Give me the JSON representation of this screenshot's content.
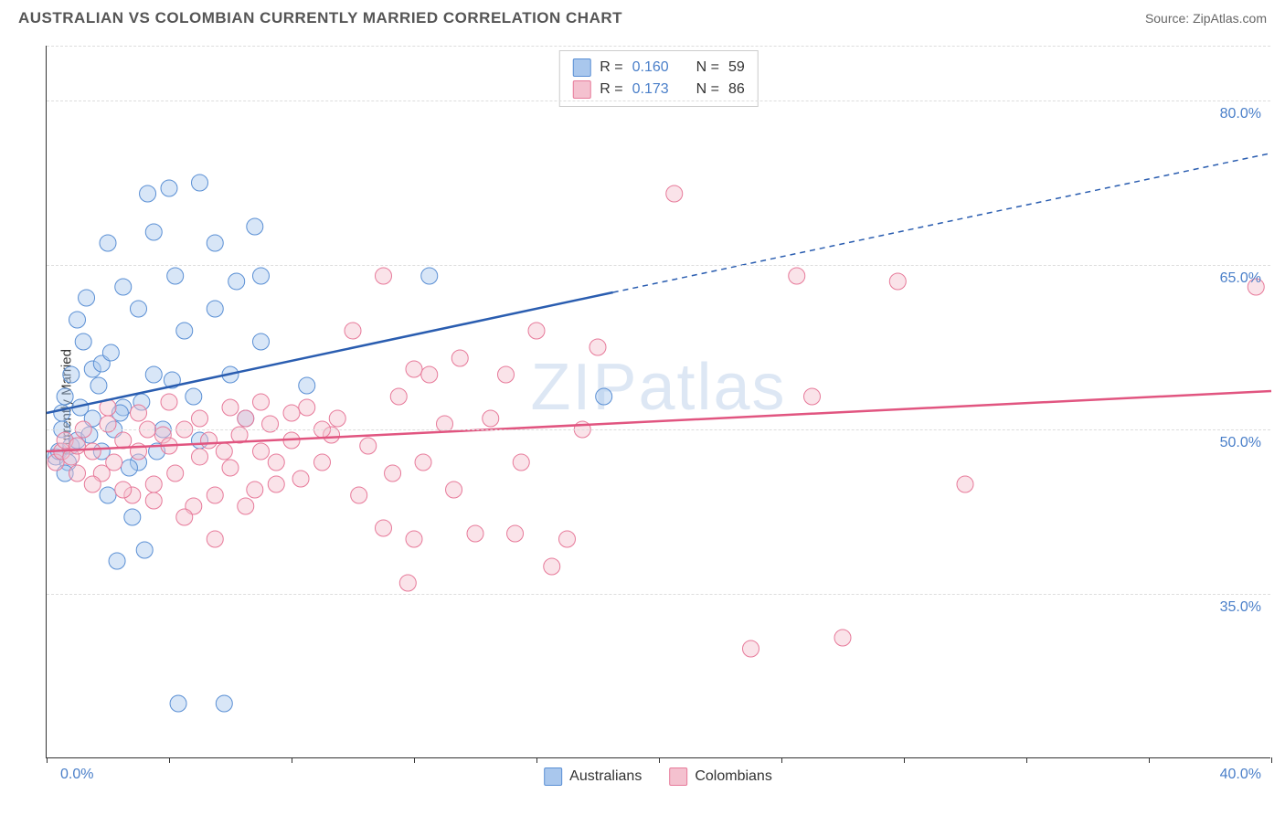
{
  "header": {
    "title": "AUSTRALIAN VS COLOMBIAN CURRENTLY MARRIED CORRELATION CHART",
    "source": "Source: ZipAtlas.com"
  },
  "watermark": "ZIPatlas",
  "chart": {
    "type": "scatter",
    "ylabel": "Currently Married",
    "xlim": [
      0,
      40
    ],
    "ylim": [
      20,
      85
    ],
    "background_color": "#ffffff",
    "grid_color": "#dddddd",
    "axis_color": "#333333",
    "ytick_values": [
      35.0,
      50.0,
      65.0,
      80.0
    ],
    "ytick_labels": [
      "35.0%",
      "50.0%",
      "65.0%",
      "80.0%"
    ],
    "xtick_values": [
      0,
      4,
      8,
      12,
      16,
      20,
      24,
      28,
      32,
      36,
      40
    ],
    "xtick_labels_shown": {
      "0": "0.0%",
      "40": "40.0%"
    },
    "tick_label_color": "#4a7fc9",
    "tick_label_fontsize": 16,
    "label_fontsize": 15,
    "marker_radius": 9,
    "marker_opacity": 0.45,
    "series": [
      {
        "name": "Australians",
        "fill_color": "#a9c7ed",
        "stroke_color": "#5a8fd4",
        "line_color": "#2a5db0",
        "r_value": "0.160",
        "n_value": "59",
        "regression": {
          "x1": 0,
          "y1": 51.5,
          "x2": 18.5,
          "y2": 62.5,
          "x3": 40,
          "y3": 75.2
        },
        "points": [
          [
            0.3,
            47.5
          ],
          [
            0.4,
            48.0
          ],
          [
            0.5,
            50.0
          ],
          [
            0.5,
            51.5
          ],
          [
            0.6,
            53.0
          ],
          [
            0.7,
            47.0
          ],
          [
            0.8,
            55.0
          ],
          [
            0.8,
            48.5
          ],
          [
            1.0,
            60.0
          ],
          [
            1.0,
            49.0
          ],
          [
            1.2,
            58.0
          ],
          [
            1.3,
            62.0
          ],
          [
            1.5,
            51.0
          ],
          [
            1.5,
            55.5
          ],
          [
            1.8,
            56.0
          ],
          [
            1.8,
            48.0
          ],
          [
            2.0,
            67.0
          ],
          [
            2.0,
            44.0
          ],
          [
            2.2,
            50.0
          ],
          [
            2.3,
            38.0
          ],
          [
            2.5,
            63.0
          ],
          [
            2.5,
            52.0
          ],
          [
            2.8,
            42.0
          ],
          [
            3.0,
            61.0
          ],
          [
            3.0,
            47.0
          ],
          [
            3.2,
            39.0
          ],
          [
            3.3,
            71.5
          ],
          [
            3.5,
            55.0
          ],
          [
            3.5,
            68.0
          ],
          [
            3.8,
            50.0
          ],
          [
            4.0,
            72.0
          ],
          [
            4.2,
            64.0
          ],
          [
            4.3,
            25.0
          ],
          [
            4.5,
            59.0
          ],
          [
            4.8,
            53.0
          ],
          [
            5.0,
            72.5
          ],
          [
            5.0,
            49.0
          ],
          [
            5.5,
            67.0
          ],
          [
            5.5,
            61.0
          ],
          [
            5.8,
            25.0
          ],
          [
            6.0,
            55.0
          ],
          [
            6.2,
            63.5
          ],
          [
            6.5,
            51.0
          ],
          [
            6.8,
            68.5
          ],
          [
            7.0,
            58.0
          ],
          [
            7.0,
            64.0
          ],
          [
            8.5,
            54.0
          ],
          [
            12.5,
            64.0
          ],
          [
            18.2,
            53.0
          ],
          [
            0.6,
            46.0
          ],
          [
            1.1,
            52.0
          ],
          [
            1.4,
            49.5
          ],
          [
            1.7,
            54.0
          ],
          [
            2.1,
            57.0
          ],
          [
            2.4,
            51.5
          ],
          [
            2.7,
            46.5
          ],
          [
            3.1,
            52.5
          ],
          [
            3.6,
            48.0
          ],
          [
            4.1,
            54.5
          ]
        ]
      },
      {
        "name": "Colombians",
        "fill_color": "#f4c1cf",
        "stroke_color": "#e77a9a",
        "line_color": "#e15580",
        "r_value": "0.173",
        "n_value": "86",
        "regression": {
          "x1": 0,
          "y1": 48.0,
          "x2": 40,
          "y2": 53.5
        },
        "points": [
          [
            0.3,
            47.0
          ],
          [
            0.5,
            48.0
          ],
          [
            0.6,
            49.0
          ],
          [
            0.8,
            47.5
          ],
          [
            1.0,
            48.5
          ],
          [
            1.2,
            50.0
          ],
          [
            1.5,
            48.0
          ],
          [
            1.8,
            46.0
          ],
          [
            2.0,
            50.5
          ],
          [
            2.2,
            47.0
          ],
          [
            2.5,
            49.0
          ],
          [
            2.8,
            44.0
          ],
          [
            3.0,
            48.0
          ],
          [
            3.3,
            50.0
          ],
          [
            3.5,
            45.0
          ],
          [
            3.8,
            49.5
          ],
          [
            4.0,
            48.5
          ],
          [
            4.2,
            46.0
          ],
          [
            4.5,
            50.0
          ],
          [
            4.8,
            43.0
          ],
          [
            5.0,
            47.5
          ],
          [
            5.3,
            49.0
          ],
          [
            5.5,
            40.0
          ],
          [
            5.8,
            48.0
          ],
          [
            6.0,
            46.5
          ],
          [
            6.3,
            49.5
          ],
          [
            6.5,
            51.0
          ],
          [
            6.8,
            44.5
          ],
          [
            7.0,
            48.0
          ],
          [
            7.3,
            50.5
          ],
          [
            7.5,
            47.0
          ],
          [
            8.0,
            49.0
          ],
          [
            8.3,
            45.5
          ],
          [
            8.5,
            52.0
          ],
          [
            9.0,
            47.0
          ],
          [
            9.3,
            49.5
          ],
          [
            9.5,
            51.0
          ],
          [
            10.0,
            59.0
          ],
          [
            10.2,
            44.0
          ],
          [
            10.5,
            48.5
          ],
          [
            11.0,
            64.0
          ],
          [
            11.0,
            41.0
          ],
          [
            11.3,
            46.0
          ],
          [
            11.5,
            53.0
          ],
          [
            11.8,
            36.0
          ],
          [
            12.0,
            55.5
          ],
          [
            12.0,
            40.0
          ],
          [
            12.3,
            47.0
          ],
          [
            12.5,
            55.0
          ],
          [
            13.0,
            50.5
          ],
          [
            13.3,
            44.5
          ],
          [
            13.5,
            56.5
          ],
          [
            14.0,
            40.5
          ],
          [
            14.5,
            51.0
          ],
          [
            15.0,
            55.0
          ],
          [
            15.3,
            40.5
          ],
          [
            15.5,
            47.0
          ],
          [
            16.0,
            59.0
          ],
          [
            16.5,
            37.5
          ],
          [
            17.0,
            40.0
          ],
          [
            17.5,
            50.0
          ],
          [
            18.0,
            57.5
          ],
          [
            20.5,
            71.5
          ],
          [
            23.0,
            30.0
          ],
          [
            24.5,
            64.0
          ],
          [
            25.0,
            53.0
          ],
          [
            26.0,
            31.0
          ],
          [
            27.8,
            63.5
          ],
          [
            30.0,
            45.0
          ],
          [
            39.5,
            63.0
          ],
          [
            2.0,
            52.0
          ],
          [
            3.0,
            51.5
          ],
          [
            4.0,
            52.5
          ],
          [
            5.0,
            51.0
          ],
          [
            6.0,
            52.0
          ],
          [
            7.0,
            52.5
          ],
          [
            8.0,
            51.5
          ],
          [
            9.0,
            50.0
          ],
          [
            1.0,
            46.0
          ],
          [
            1.5,
            45.0
          ],
          [
            2.5,
            44.5
          ],
          [
            3.5,
            43.5
          ],
          [
            4.5,
            42.0
          ],
          [
            5.5,
            44.0
          ],
          [
            6.5,
            43.0
          ],
          [
            7.5,
            45.0
          ]
        ]
      }
    ],
    "footer_legend": [
      {
        "label": "Australians",
        "fill": "#a9c7ed",
        "stroke": "#5a8fd4"
      },
      {
        "label": "Colombians",
        "fill": "#f4c1cf",
        "stroke": "#e77a9a"
      }
    ]
  }
}
